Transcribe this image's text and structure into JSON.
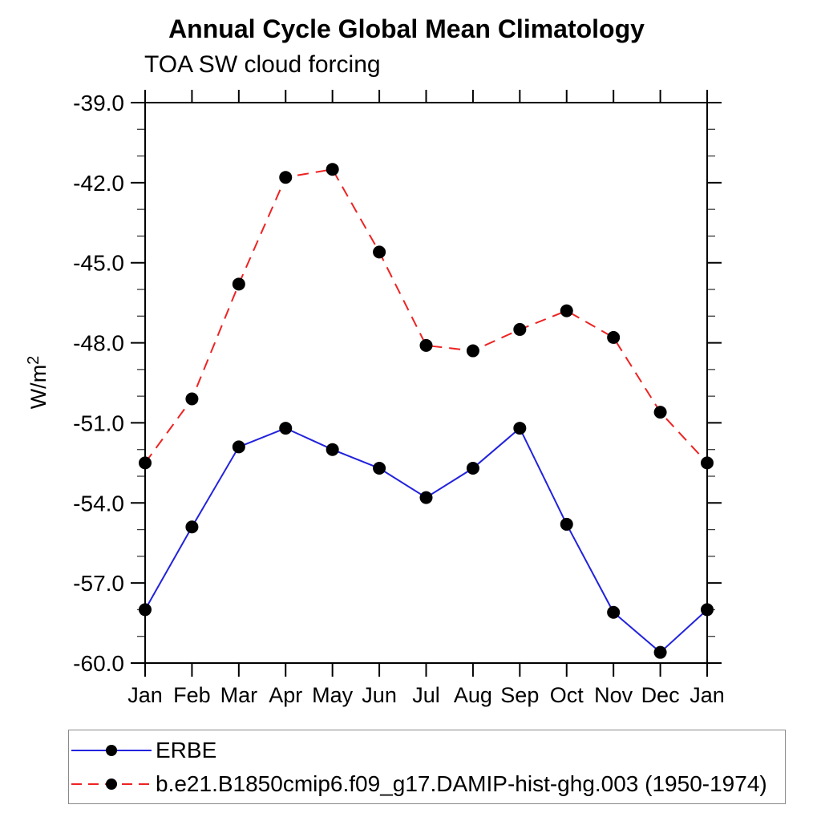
{
  "chart_data": {
    "type": "line",
    "title": "Annual Cycle Global Mean Climatology",
    "subtitle": "TOA SW cloud forcing",
    "ylabel": "W/m²",
    "ylabel_base": "W/m",
    "ylabel_sup": "2",
    "categories": [
      "Jan",
      "Feb",
      "Mar",
      "Apr",
      "May",
      "Jun",
      "Jul",
      "Aug",
      "Sep",
      "Oct",
      "Nov",
      "Dec",
      "Jan"
    ],
    "ylim": [
      -60.0,
      -39.0
    ],
    "ytick_interval": 3.0,
    "minor_tick_interval": 1.0,
    "yticks": [
      "-39.0",
      "-42.0",
      "-45.0",
      "-48.0",
      "-51.0",
      "-54.0",
      "-57.0",
      "-60.0"
    ],
    "grid": false,
    "legend_position": "bottom-left-box",
    "series": [
      {
        "name": "ERBE",
        "style": "solid",
        "color": "#2222dd",
        "marker": "filled-circle",
        "marker_color": "#000000",
        "values": [
          -58.0,
          -54.9,
          -51.9,
          -51.2,
          -52.0,
          -52.7,
          -53.8,
          -52.7,
          -51.2,
          -54.8,
          -58.1,
          -59.6,
          -58.0
        ]
      },
      {
        "name": "b.e21.B1850cmip6.f09_g17.DAMIP-hist-ghg.003 (1950-1974)",
        "style": "dashed",
        "color": "#ee2222",
        "marker": "filled-circle",
        "marker_color": "#000000",
        "values": [
          -52.5,
          -50.1,
          -45.8,
          -41.8,
          -41.5,
          -44.6,
          -48.1,
          -48.3,
          -47.5,
          -46.8,
          -47.8,
          -50.6,
          -52.5
        ]
      }
    ]
  }
}
